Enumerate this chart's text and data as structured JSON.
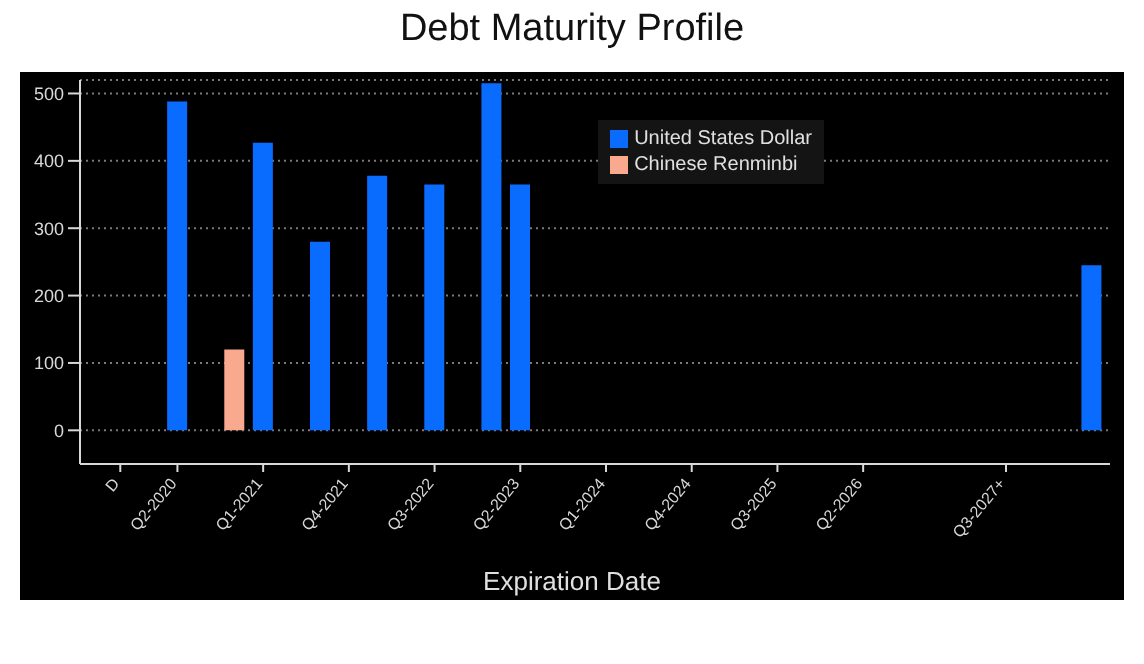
{
  "chart_data": {
    "type": "bar",
    "title": "Debt Maturity Profile",
    "xlabel": "Expiration Date",
    "categories": [
      "D",
      null,
      "Q2-2020",
      null,
      null,
      "Q1-2021",
      null,
      null,
      "Q4-2021",
      null,
      null,
      "Q3-2022",
      null,
      null,
      "Q2-2023",
      null,
      null,
      "Q1-2024",
      null,
      null,
      "Q4-2024",
      null,
      null,
      "Q3-2025",
      null,
      null,
      "Q2-2026",
      null,
      null,
      null,
      null,
      "Q3-2027+",
      null,
      null,
      null
    ],
    "series": [
      {
        "name": "United States Dollar",
        "color": "#0a6cff",
        "values": [
          null,
          null,
          488,
          null,
          null,
          427,
          null,
          280,
          null,
          378,
          null,
          365,
          null,
          515,
          365,
          null,
          null,
          null,
          null,
          null,
          null,
          null,
          null,
          null,
          null,
          null,
          null,
          null,
          null,
          null,
          null,
          null,
          null,
          null,
          245
        ]
      },
      {
        "name": "Chinese Renminbi",
        "color": "#f9a98e",
        "values": [
          null,
          null,
          null,
          null,
          120,
          null,
          null,
          null,
          null,
          null,
          null,
          null,
          null,
          null,
          null,
          null,
          null,
          null,
          null,
          null,
          null,
          null,
          null,
          null,
          null,
          null,
          null,
          null,
          null,
          null,
          null,
          null,
          null,
          null,
          null
        ]
      }
    ],
    "stacked": true,
    "ylim": [
      -50,
      520
    ],
    "yticks": [
      0,
      100,
      200,
      300,
      400,
      500
    ],
    "grid": "y",
    "legend": "top right"
  }
}
